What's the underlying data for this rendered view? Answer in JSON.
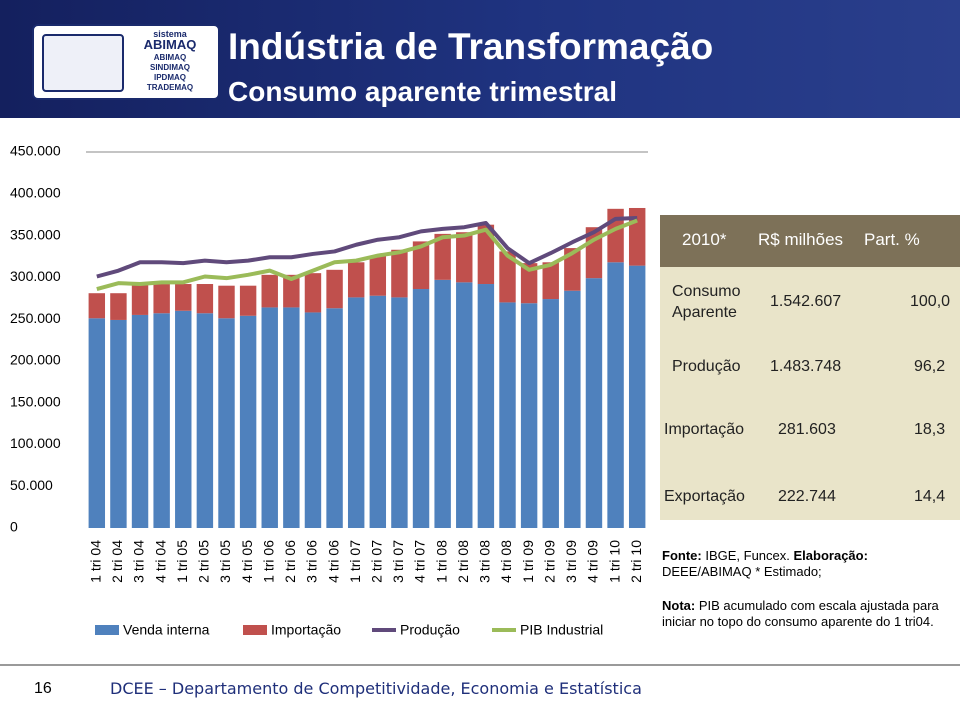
{
  "header": {
    "title": "Indústria de Transformação",
    "subtitle": "Consumo aparente trimestral",
    "logo": [
      "sistema",
      "ABIMAQ",
      "ABIMAQ",
      "SINDIMAQ",
      "IPDMAQ",
      "TRADEMAQ"
    ]
  },
  "chart_data": {
    "type": "bar",
    "stacked": true,
    "categories": [
      "1 tri 04",
      "2 tri 04",
      "3 tri 04",
      "4 tri 04",
      "1 tri 05",
      "2 tri 05",
      "3 tri 05",
      "4 tri 05",
      "1 tri 06",
      "2 tri 06",
      "3 tri 06",
      "4 tri 06",
      "1 tri 07",
      "2 tri 07",
      "3 tri 07",
      "4 tri 07",
      "1 tri 08",
      "2 tri 08",
      "3 tri 08",
      "4 tri 08",
      "1 tri 09",
      "2 tri 09",
      "3 tri 09",
      "4 tri 09",
      "1 tri 10",
      "2 tri 10"
    ],
    "series": [
      {
        "name": "Venda interna",
        "type": "bar",
        "color": "#4f81bd",
        "values": [
          251000,
          249000,
          255000,
          257000,
          260000,
          257000,
          251000,
          254000,
          264000,
          264000,
          258000,
          263000,
          276000,
          278000,
          276000,
          286000,
          297000,
          294000,
          292000,
          270000,
          269000,
          274000,
          284000,
          299000,
          318000,
          314000
        ]
      },
      {
        "name": "Importação",
        "type": "bar",
        "color": "#c0504d",
        "values": [
          30000,
          32000,
          36000,
          37000,
          32000,
          35000,
          39000,
          36000,
          39000,
          39000,
          47000,
          46000,
          42000,
          48000,
          57000,
          57000,
          55000,
          60000,
          71000,
          61000,
          48000,
          44000,
          51000,
          61000,
          64000,
          69000
        ]
      },
      {
        "name": "Produção",
        "type": "line",
        "color": "#604a7b",
        "values": [
          301000,
          308000,
          318000,
          318000,
          317000,
          320000,
          318000,
          320000,
          324000,
          324000,
          328000,
          331000,
          339000,
          345000,
          348000,
          355000,
          358000,
          360000,
          365000,
          335000,
          317000,
          329000,
          342000,
          354000,
          370000,
          371000
        ]
      },
      {
        "name": "PIB Industrial",
        "type": "line",
        "color": "#9bbb59",
        "values": [
          286000,
          293000,
          292000,
          294000,
          294000,
          301000,
          299000,
          303000,
          308000,
          298000,
          308000,
          318000,
          320000,
          326000,
          330000,
          337000,
          348000,
          350000,
          357000,
          326000,
          309000,
          315000,
          329000,
          345000,
          358000,
          368000
        ]
      }
    ],
    "ylim": [
      0,
      450000
    ],
    "yticks": [
      0,
      {
        "value": 50000,
        "label": "50.000"
      },
      {
        "value": 100000,
        "label": "100.000"
      },
      {
        "value": 150000,
        "label": "150.000"
      },
      {
        "value": 200000,
        "label": "200.000"
      },
      {
        "value": 250000,
        "label": "250.000"
      },
      {
        "value": 300000,
        "label": "300.000"
      },
      {
        "value": 350000,
        "label": "350.000"
      },
      {
        "value": 400000,
        "label": "400.000"
      },
      {
        "value": 450000,
        "label": "450.000"
      }
    ],
    "grid": false,
    "legend": "bottom"
  },
  "table": {
    "header": [
      "2010*",
      "R$ milhões",
      "Part. %"
    ],
    "rows": [
      [
        "Consumo Aparente",
        "1.542.607",
        "100,0"
      ],
      [
        "Produção",
        "1.483.748",
        "96,2"
      ],
      [
        "Importação",
        "281.603",
        "18,3"
      ],
      [
        "Exportação",
        "222.744",
        "14,4"
      ]
    ]
  },
  "notes": {
    "source_label": "Fonte:",
    "source_text": "IBGE, Funcex.",
    "credit_label": "Elaboração:",
    "credit_text": "DEEE/ABIMAQ * Estimado;",
    "note_label": "Nota:",
    "note_text": "PIB acumulado com escala ajustada para iniciar no topo do consumo aparente do 1 tri04."
  },
  "footer": {
    "page": "16",
    "department": "DCEE – Departamento de Competitividade, Economia e Estatística"
  }
}
